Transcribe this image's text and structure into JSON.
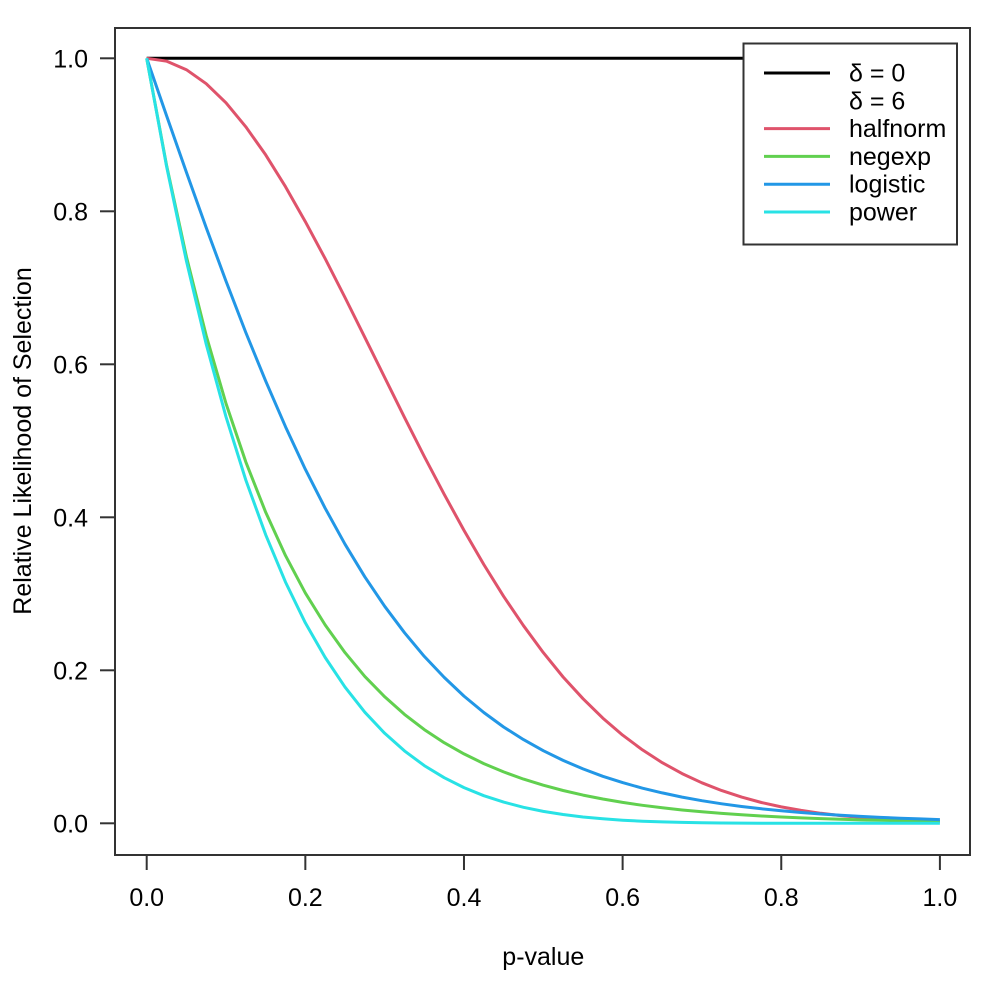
{
  "figure": {
    "background": "#ffffff",
    "description": "Line plot of relative likelihood of selection as a function of the p-value for different selection functions"
  },
  "chart_data": {
    "type": "line",
    "title": "",
    "xlabel": "p-value",
    "ylabel": "Relative Likelihood of Selection",
    "xlim": [
      0,
      1
    ],
    "ylim": [
      0,
      1
    ],
    "grid": false,
    "box": true,
    "legend_position": "top-right",
    "x_ticks": [
      0.0,
      0.2,
      0.4,
      0.6,
      0.8,
      1.0
    ],
    "x_tick_labels": [
      "0.0",
      "0.2",
      "0.4",
      "0.6",
      "0.8",
      "1.0"
    ],
    "y_ticks": [
      0.0,
      0.2,
      0.4,
      0.6,
      0.8,
      1.0
    ],
    "y_tick_labels": [
      "0.0",
      "0.2",
      "0.4",
      "0.6",
      "0.8",
      "1.0"
    ],
    "delta_reference": 0,
    "delta_selection": 6,
    "x": [
      0,
      0.025,
      0.05,
      0.075,
      0.1,
      0.125,
      0.15,
      0.175,
      0.2,
      0.225,
      0.25,
      0.275,
      0.3,
      0.325,
      0.35,
      0.375,
      0.4,
      0.425,
      0.45,
      0.475,
      0.5,
      0.525,
      0.55,
      0.575,
      0.6,
      0.625,
      0.65,
      0.675,
      0.7,
      0.725,
      0.75,
      0.775,
      0.8,
      0.825,
      0.85,
      0.875,
      0.9,
      0.925,
      0.95,
      0.975,
      1
    ],
    "series": [
      {
        "name": "delta0",
        "label": "δ = 0",
        "formula": "w(p) = 1",
        "color": "#000000",
        "x": [
          0,
          1
        ],
        "values": [
          1,
          1
        ]
      },
      {
        "name": "halfnorm",
        "label": "halfnorm",
        "formula": "w(p) = exp(-6·p²)",
        "color": "#DF536B",
        "values": [
          1,
          0.9963,
          0.9851,
          0.9668,
          0.9418,
          0.9105,
          0.8737,
          0.8321,
          0.7866,
          0.738,
          0.6873,
          0.6353,
          0.5827,
          0.5306,
          0.4795,
          0.4301,
          0.3829,
          0.3383,
          0.2967,
          0.2583,
          0.2231,
          0.1913,
          0.1629,
          0.1375,
          0.1153,
          0.096,
          0.0792,
          0.065,
          0.0529,
          0.0427,
          0.0343,
          0.0272,
          0.0215,
          0.0168,
          0.0131,
          0.0101,
          0.0077,
          0.0059,
          0.0044,
          0.0033,
          0.0025
        ]
      },
      {
        "name": "negexp",
        "label": "negexp",
        "formula": "w(p) = exp(-6·p)",
        "color": "#61D04F",
        "values": [
          1,
          0.8607,
          0.7408,
          0.6376,
          0.5488,
          0.4724,
          0.4066,
          0.3499,
          0.3012,
          0.2592,
          0.2231,
          0.192,
          0.1653,
          0.1423,
          0.1225,
          0.1054,
          0.0907,
          0.0781,
          0.0672,
          0.0578,
          0.0498,
          0.0429,
          0.0369,
          0.0317,
          0.0273,
          0.0235,
          0.0202,
          0.0174,
          0.015,
          0.0129,
          0.0111,
          0.0096,
          0.0082,
          0.0071,
          0.0061,
          0.0052,
          0.0045,
          0.0039,
          0.0033,
          0.0029,
          0.0025
        ]
      },
      {
        "name": "logistic",
        "label": "logistic",
        "formula": "w(p) = 2·exp(-6·p)/(1+exp(-6·p))",
        "color": "#2297E6",
        "values": [
          1,
          0.9252,
          0.8511,
          0.7787,
          0.7087,
          0.6416,
          0.5781,
          0.5184,
          0.4629,
          0.4117,
          0.3648,
          0.3222,
          0.2837,
          0.2491,
          0.2182,
          0.1907,
          0.1663,
          0.1449,
          0.1259,
          0.1094,
          0.0949,
          0.0822,
          0.0711,
          0.0615,
          0.0532,
          0.0459,
          0.0397,
          0.0343,
          0.0296,
          0.0255,
          0.022,
          0.0189,
          0.0163,
          0.0141,
          0.0121,
          0.0104,
          0.009,
          0.0077,
          0.0067,
          0.0057,
          0.0049
        ]
      },
      {
        "name": "power",
        "label": "power",
        "formula": "w(p) = (1-p)^6",
        "color": "#28E2E5",
        "values": [
          1,
          0.8591,
          0.7351,
          0.6264,
          0.5314,
          0.4488,
          0.3771,
          0.3153,
          0.2621,
          0.2167,
          0.178,
          0.1452,
          0.1176,
          0.0946,
          0.0754,
          0.0596,
          0.0467,
          0.0361,
          0.0277,
          0.0209,
          0.0156,
          0.0115,
          0.0083,
          0.0059,
          0.0041,
          0.0028,
          0.0018,
          0.0012,
          0.0007,
          0.0004,
          0.0002,
          0.0001,
          0.0001,
          0,
          0,
          0,
          0,
          0,
          0,
          0,
          0
        ]
      }
    ]
  },
  "legend": {
    "items": [
      {
        "label": "δ = 0",
        "color": "#000000",
        "show_line": true
      },
      {
        "label": "δ = 6",
        "color": null,
        "show_line": false
      },
      {
        "label": "halfnorm",
        "color": "#DF536B",
        "show_line": true
      },
      {
        "label": "negexp",
        "color": "#61D04F",
        "show_line": true
      },
      {
        "label": "logistic",
        "color": "#2297E6",
        "show_line": true
      },
      {
        "label": "power",
        "color": "#28E2E5",
        "show_line": true
      }
    ]
  }
}
